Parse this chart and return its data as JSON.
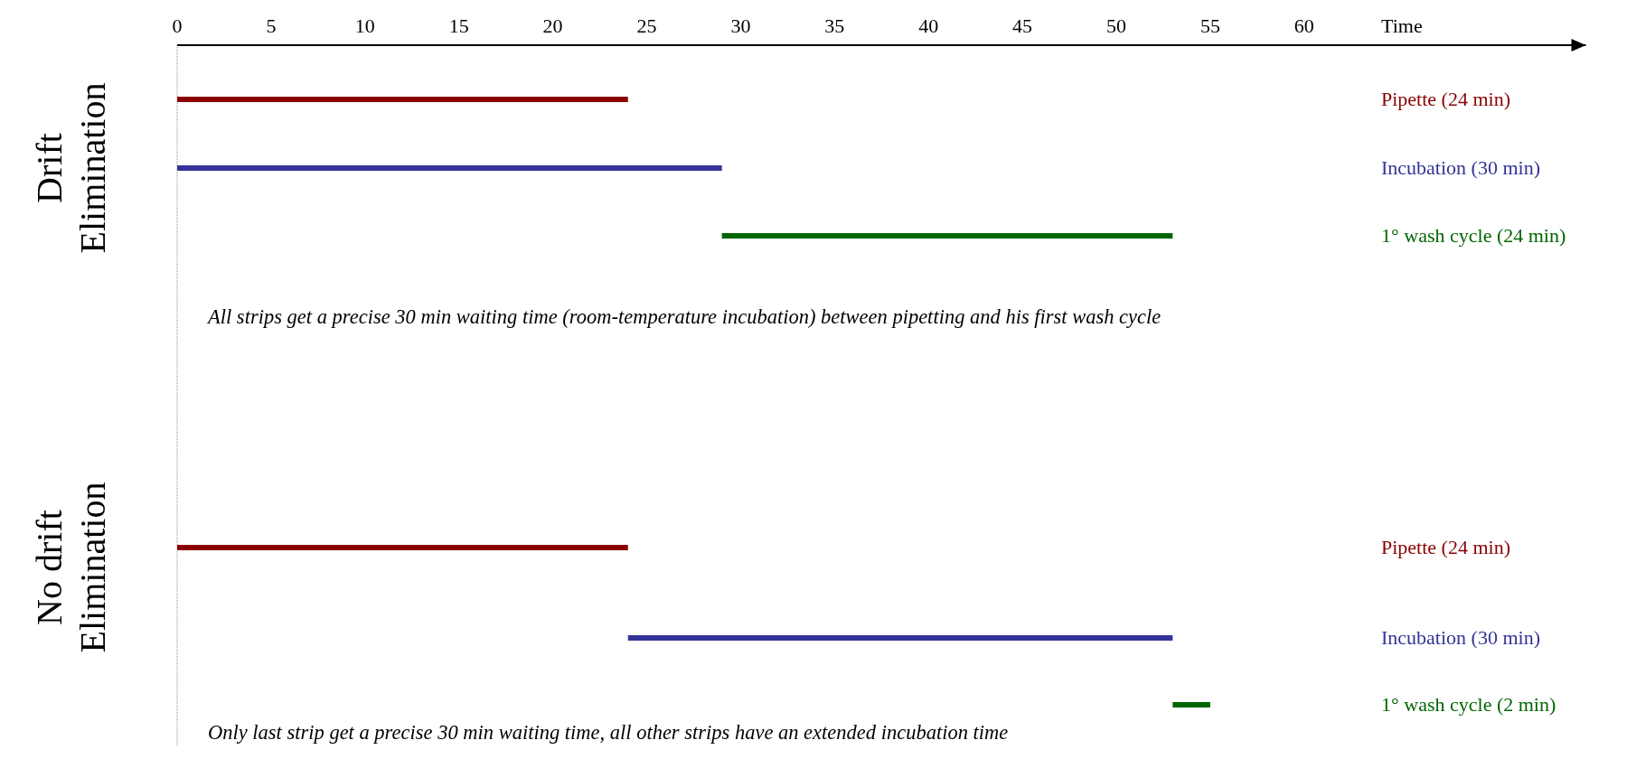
{
  "chart_data": {
    "type": "bar",
    "orientation": "horizontal",
    "xlabel": "Time",
    "xlim": [
      0,
      75
    ],
    "xticks": [
      0,
      5,
      10,
      15,
      20,
      25,
      30,
      35,
      40,
      45,
      50,
      55,
      60
    ],
    "categories": [
      "Pipette (24 min)",
      "Incubation (30 min)",
      "1° wash cycle (24 min)",
      "Pipette (24 min)",
      "Incubation (30 min)",
      "1° wash cycle (2 min)"
    ],
    "base": [
      0,
      0,
      29,
      0,
      24,
      53
    ],
    "values": [
      24,
      29,
      24,
      24,
      29,
      2
    ],
    "colors": [
      "#8b0000",
      "#333399",
      "#006600",
      "#8b0000",
      "#333399",
      "#006600"
    ],
    "annotations": [
      "Drift Elimination",
      "All strips get a precise 30 min waiting time (room-temperature incubation) between pipetting and his first wash cycle",
      "No drift Elimination",
      "Only last strip get a precise 30 min waiting time, all other strips have an extended incubation time"
    ]
  }
}
